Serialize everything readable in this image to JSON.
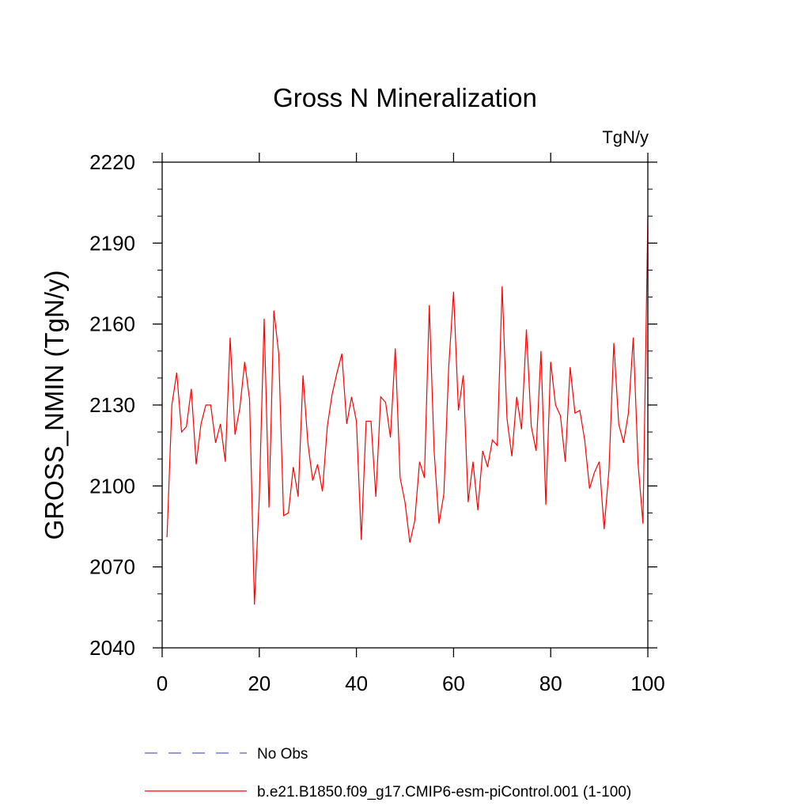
{
  "chart_data": {
    "type": "line",
    "title": "Gross N Mineralization",
    "units": "TgN/y",
    "ylabel": "GROSS_NMIN  (TgN/y)",
    "xlabel": "",
    "xlim": [
      0,
      100
    ],
    "ylim": [
      2040,
      2220
    ],
    "xticks": [
      0,
      20,
      40,
      60,
      80,
      100
    ],
    "yticks": [
      2040,
      2070,
      2100,
      2130,
      2160,
      2190,
      2220
    ],
    "legend": [
      {
        "label": "No Obs",
        "color": "#5b5bd6",
        "style": "dashed"
      },
      {
        "label": "b.e21.B1850.f09_g17.CMIP6-esm-piControl.001 (1-100)",
        "color": "#ff0000",
        "style": "solid"
      }
    ],
    "series": [
      {
        "name": "b.e21.B1850.f09_g17.CMIP6-esm-piControl.001 (1-100)",
        "color": "#ff0000",
        "x": [
          1,
          2,
          3,
          4,
          5,
          6,
          7,
          8,
          9,
          10,
          11,
          12,
          13,
          14,
          15,
          16,
          17,
          18,
          19,
          20,
          21,
          22,
          23,
          24,
          25,
          26,
          27,
          28,
          29,
          30,
          31,
          32,
          33,
          34,
          35,
          36,
          37,
          38,
          39,
          40,
          41,
          42,
          43,
          44,
          45,
          46,
          47,
          48,
          49,
          50,
          51,
          52,
          53,
          54,
          55,
          56,
          57,
          58,
          59,
          60,
          61,
          62,
          63,
          64,
          65,
          66,
          67,
          68,
          69,
          70,
          71,
          72,
          73,
          74,
          75,
          76,
          77,
          78,
          79,
          80,
          81,
          82,
          83,
          84,
          85,
          86,
          87,
          88,
          89,
          90,
          91,
          92,
          93,
          94,
          95,
          96,
          97,
          98,
          99,
          100
        ],
        "values": [
          2081,
          2130,
          2142,
          2120,
          2122,
          2136,
          2108,
          2123,
          2130,
          2130,
          2116,
          2123,
          2109,
          2155,
          2119,
          2129,
          2146,
          2132,
          2056,
          2096,
          2162,
          2092,
          2165,
          2149,
          2089,
          2090,
          2107,
          2096,
          2141,
          2116,
          2102,
          2108,
          2098,
          2122,
          2134,
          2142,
          2149,
          2123,
          2133,
          2124,
          2080,
          2124,
          2124,
          2096,
          2133,
          2131,
          2118,
          2151,
          2103,
          2094,
          2079,
          2087,
          2109,
          2103,
          2167,
          2113,
          2086,
          2097,
          2144,
          2172,
          2128,
          2141,
          2094,
          2109,
          2091,
          2113,
          2107,
          2117,
          2115,
          2174,
          2125,
          2111,
          2133,
          2121,
          2158,
          2122,
          2113,
          2150,
          2093,
          2146,
          2130,
          2126,
          2109,
          2144,
          2127,
          2128,
          2117,
          2099,
          2105,
          2109,
          2084,
          2106,
          2153,
          2123,
          2116,
          2127,
          2155,
          2108,
          2086,
          2200
        ]
      }
    ]
  }
}
